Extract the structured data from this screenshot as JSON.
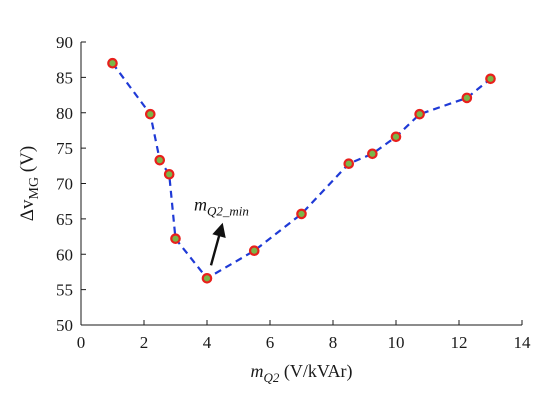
{
  "chart_data": {
    "type": "scatter",
    "title": "",
    "xlabel": {
      "main": "m",
      "sub": "Q2",
      "unit": " (V/kVAr)"
    },
    "ylabel": {
      "main": "Δv",
      "sub": "MG",
      "unit": " (V)"
    },
    "xlim": [
      0,
      14
    ],
    "ylim": [
      50,
      90
    ],
    "xticks": [
      "0",
      "2",
      "4",
      "6",
      "8",
      "10",
      "12",
      "14"
    ],
    "yticks": [
      "50",
      "55",
      "60",
      "65",
      "70",
      "75",
      "80",
      "85",
      "90"
    ],
    "grid": false,
    "series": [
      {
        "x": [
          1,
          2.2,
          2.5,
          2.8,
          3,
          4,
          5.5,
          7,
          8.5,
          9.25,
          10,
          10.75,
          12.25,
          13
        ],
        "y": [
          87,
          79.8,
          73.3,
          71.3,
          62.2,
          56.6,
          60.5,
          65.7,
          72.8,
          74.2,
          76.6,
          79.8,
          82.1,
          84.8
        ],
        "line_style": "dashed",
        "line_color": "#1f3ad6",
        "marker_fill": "#7ab648",
        "marker_edge": "#e8201c"
      }
    ],
    "annotation": {
      "main": "m",
      "sub": "Q2_min",
      "x": 4,
      "y": 56.6
    }
  }
}
